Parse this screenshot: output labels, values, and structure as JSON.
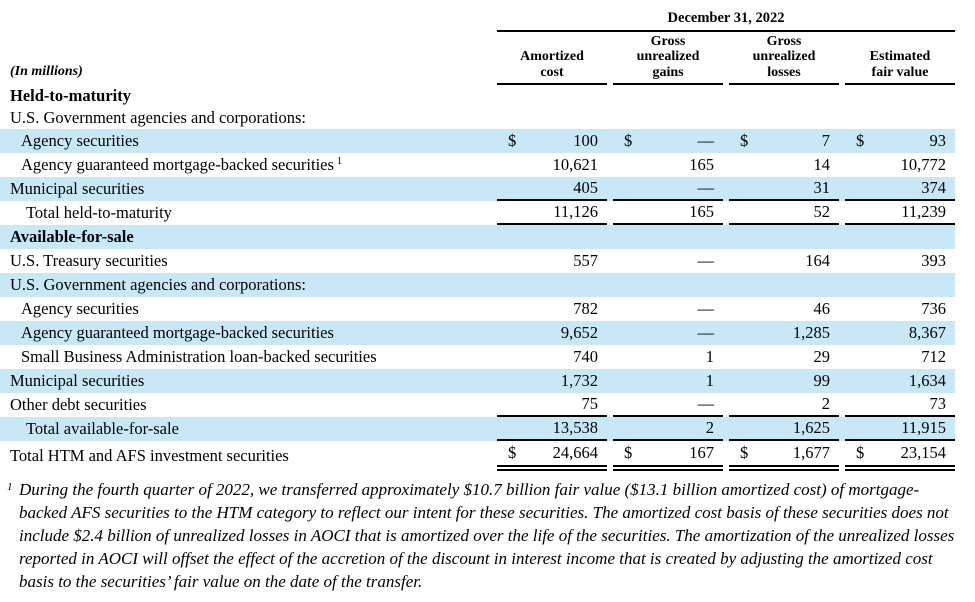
{
  "header": {
    "in_millions": "(In millions)",
    "date": "December 31, 2022",
    "columns": [
      {
        "line1": "Amortized",
        "line2": "cost"
      },
      {
        "line1": "Gross",
        "line2": "unrealized",
        "line3": "gains"
      },
      {
        "line1": "Gross",
        "line2": "unrealized",
        "line3": "losses"
      },
      {
        "line1": "Estimated",
        "line2": "fair value"
      }
    ]
  },
  "rows": [
    {
      "label": "Held-to-maturity"
    },
    {
      "label": "U.S. Government agencies and corporations:"
    },
    {
      "label": "Agency securities",
      "currency": "$",
      "values": [
        "100",
        "—",
        "7",
        "93"
      ]
    },
    {
      "label": "Agency guaranteed mortgage-backed securities",
      "sup": "1",
      "values": [
        "10,621",
        "165",
        "14",
        "10,772"
      ]
    },
    {
      "label": "Municipal securities",
      "values": [
        "405",
        "—",
        "31",
        "374"
      ]
    },
    {
      "label": "Total held-to-maturity",
      "values": [
        "11,126",
        "165",
        "52",
        "11,239"
      ]
    },
    {
      "label": "Available-for-sale"
    },
    {
      "label": "U.S. Treasury securities",
      "values": [
        "557",
        "—",
        "164",
        "393"
      ]
    },
    {
      "label": "U.S. Government agencies and corporations:"
    },
    {
      "label": "Agency securities",
      "values": [
        "782",
        "—",
        "46",
        "736"
      ]
    },
    {
      "label": "Agency guaranteed mortgage-backed securities",
      "values": [
        "9,652",
        "—",
        "1,285",
        "8,367"
      ]
    },
    {
      "label": "Small Business Administration loan-backed securities",
      "values": [
        "740",
        "1",
        "29",
        "712"
      ]
    },
    {
      "label": "Municipal securities",
      "values": [
        "1,732",
        "1",
        "99",
        "1,634"
      ]
    },
    {
      "label": "Other debt securities",
      "values": [
        "75",
        "—",
        "2",
        "73"
      ]
    },
    {
      "label": "Total available-for-sale",
      "values": [
        "13,538",
        "2",
        "1,625",
        "11,915"
      ]
    },
    {
      "label": "Total HTM and AFS investment securities",
      "currency": "$",
      "values": [
        "24,664",
        "167",
        "1,677",
        "23,154"
      ]
    }
  ],
  "footnote": {
    "marker": "1",
    "text": "During the fourth quarter of 2022, we transferred approximately $10.7 billion fair value ($13.1 billion amortized cost) of mortgage-backed AFS securities to the HTM category to reflect our intent for these securities. The amortized cost basis of these securities does not include $2.4 billion of unrealized losses in AOCI that is amortized over the life of the securities. The amortization of the unrealized losses reported in AOCI will offset the effect of the accretion of the discount in interest income that is created by adjusting the amortized cost basis to the securities’ fair value on the date of the transfer."
  },
  "colors": {
    "highlight": "#C8E8F8"
  }
}
